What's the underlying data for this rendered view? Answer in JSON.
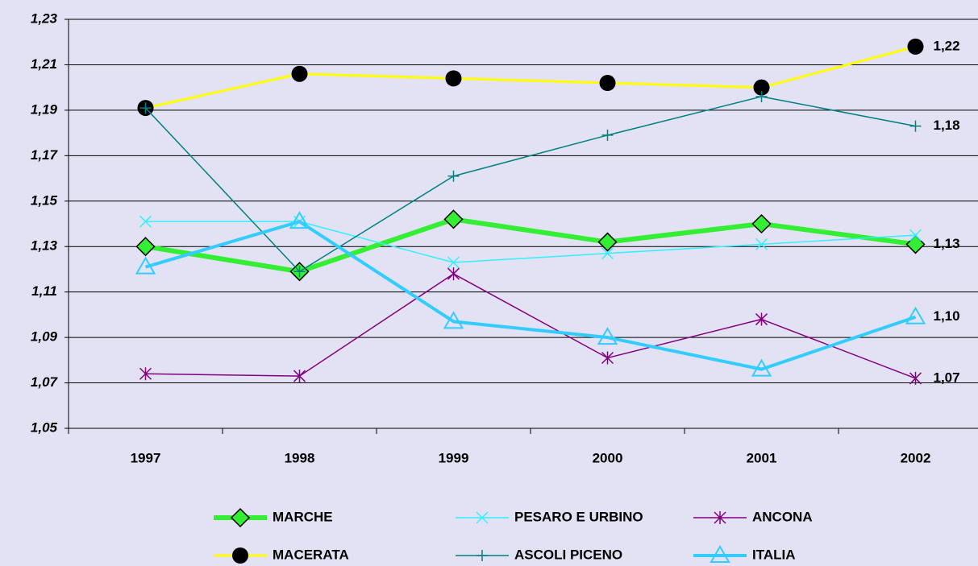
{
  "chart_data": {
    "type": "line",
    "categories": [
      "1997",
      "1998",
      "1999",
      "2000",
      "2001",
      "2002"
    ],
    "ylim": [
      1.05,
      1.23
    ],
    "yticks": [
      {
        "value": 1.05,
        "label": "1,05"
      },
      {
        "value": 1.07,
        "label": "1,07"
      },
      {
        "value": 1.09,
        "label": "1,09"
      },
      {
        "value": 1.11,
        "label": "1,11"
      },
      {
        "value": 1.13,
        "label": "1,13"
      },
      {
        "value": 1.15,
        "label": "1,15"
      },
      {
        "value": 1.17,
        "label": "1,17"
      },
      {
        "value": 1.19,
        "label": "1,19"
      },
      {
        "value": 1.21,
        "label": "1,21"
      },
      {
        "value": 1.23,
        "label": "1,23"
      }
    ],
    "grid": true,
    "series": [
      {
        "name": "MARCHE",
        "color": "#33ee33",
        "marker": "diamond",
        "line_width": 6,
        "values": [
          1.13,
          1.119,
          1.142,
          1.132,
          1.14,
          1.131
        ],
        "value_labels": [
          null,
          null,
          null,
          null,
          null,
          "1,13"
        ]
      },
      {
        "name": "PESARO E URBINO",
        "color": "#33f0ff",
        "marker": "x",
        "line_width": 1.5,
        "values": [
          1.141,
          1.141,
          1.123,
          1.127,
          1.131,
          1.135
        ]
      },
      {
        "name": "ANCONA",
        "color": "#800080",
        "marker": "asterisk",
        "line_width": 1.5,
        "values": [
          1.074,
          1.073,
          1.118,
          1.081,
          1.098,
          1.072
        ],
        "value_labels": [
          null,
          null,
          null,
          null,
          null,
          "1,07"
        ]
      },
      {
        "name": "MACERATA",
        "color": "#ffff00",
        "marker": "circle",
        "line_width": 3,
        "values": [
          1.191,
          1.206,
          1.204,
          1.202,
          1.2,
          1.218
        ],
        "value_labels": [
          null,
          null,
          null,
          null,
          null,
          "1,22"
        ]
      },
      {
        "name": "ASCOLI PICENO",
        "color": "#008080",
        "marker": "plus",
        "line_width": 1.5,
        "values": [
          1.191,
          1.119,
          1.161,
          1.179,
          1.196,
          1.183
        ],
        "value_labels": [
          null,
          null,
          null,
          null,
          null,
          "1,18"
        ]
      },
      {
        "name": "ITALIA",
        "color": "#33ccff",
        "marker": "triangle",
        "line_width": 4,
        "values": [
          1.121,
          1.141,
          1.097,
          1.09,
          1.076,
          1.099
        ],
        "value_labels": [
          null,
          null,
          null,
          null,
          null,
          "1,10"
        ]
      }
    ]
  }
}
